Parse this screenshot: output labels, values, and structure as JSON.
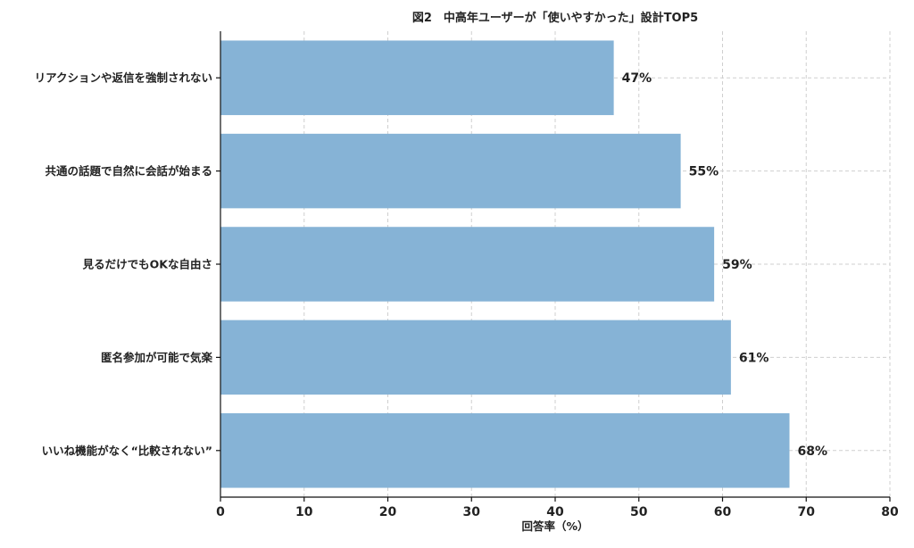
{
  "chart_data": {
    "type": "bar",
    "orientation": "horizontal",
    "title": "図2　中高年ユーザーが「使いやすかった」設計TOP5",
    "xlabel": "回答率（%）",
    "ylabel": "",
    "xlim": [
      0,
      80
    ],
    "xticks": [
      0,
      10,
      20,
      30,
      40,
      50,
      60,
      70,
      80
    ],
    "grid": true,
    "bar_color": "#86b3d6",
    "categories": [
      "リアクションや返信を強制されない",
      "共通の話題で自然に会話が始まる",
      "見るだけでもOKな自由さ",
      "匿名参加が可能で気楽",
      "いいね機能がなく“比較されない”"
    ],
    "values": [
      47,
      55,
      59,
      61,
      68
    ],
    "value_labels": [
      "47%",
      "55%",
      "59%",
      "61%",
      "68%"
    ]
  }
}
